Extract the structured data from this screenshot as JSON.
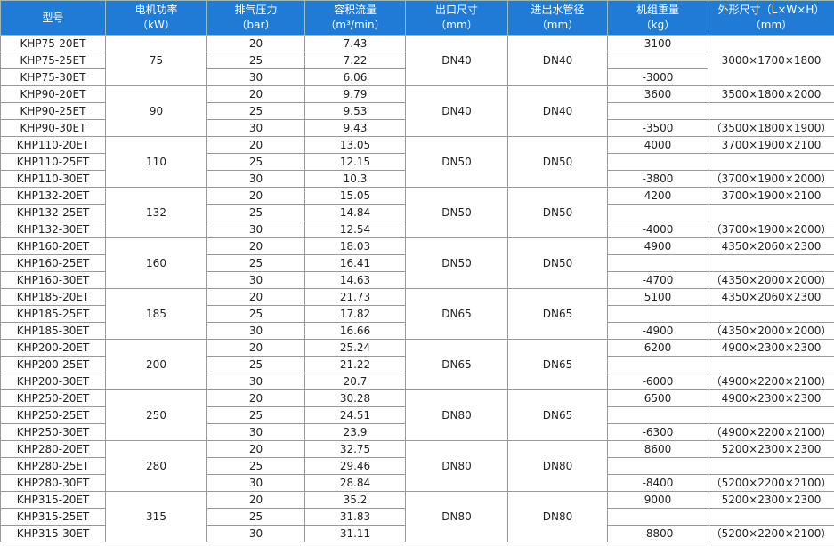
{
  "header": {
    "columns": [
      {
        "title": "型号"
      },
      {
        "title": "电机功率",
        "unit": "（kW）"
      },
      {
        "title": "排气压力",
        "unit": "（bar）"
      },
      {
        "title": "容积流量",
        "unit": "（m³/min）"
      },
      {
        "title": "出口尺寸",
        "unit": "（mm）"
      },
      {
        "title": "进出水管径",
        "unit": "（mm）"
      },
      {
        "title": "机组重量",
        "unit": "（kg）"
      },
      {
        "title": "外形尺寸（L×W×H）",
        "unit": "（mm）"
      }
    ]
  },
  "groups": [
    {
      "models": [
        "KHP75-20ET",
        "KHP75-25ET",
        "KHP75-30ET"
      ],
      "power": "75",
      "pressures": [
        "20",
        "25",
        "30"
      ],
      "flows": [
        "7.43",
        "7.22",
        "6.06"
      ],
      "outlet": "DN40",
      "water": "DN40",
      "weight": [
        "3100",
        "-3000"
      ],
      "dims": [
        "3000×1700×1800"
      ]
    },
    {
      "models": [
        "KHP90-20ET",
        "KHP90-25ET",
        "KHP90-30ET"
      ],
      "power": "90",
      "pressures": [
        "20",
        "25",
        "30"
      ],
      "flows": [
        "9.79",
        "9.53",
        "9.43"
      ],
      "outlet": "DN40",
      "water": "DN40",
      "weight": [
        "3600",
        "-3500"
      ],
      "dims": [
        "3500×1800×2000",
        "（3500×1800×1900）"
      ]
    },
    {
      "models": [
        "KHP110-20ET",
        "KHP110-25ET",
        "KHP110-30ET"
      ],
      "power": "110",
      "pressures": [
        "20",
        "25",
        "30"
      ],
      "flows": [
        "13.05",
        "12.15",
        "10.3"
      ],
      "outlet": "DN50",
      "water": "DN50",
      "weight": [
        "4000",
        "-3800"
      ],
      "dims": [
        "3700×1900×2100",
        "（3700×1900×2000）"
      ]
    },
    {
      "models": [
        "KHP132-20ET",
        "KHP132-25ET",
        "KHP132-30ET"
      ],
      "power": "132",
      "pressures": [
        "20",
        "25",
        "30"
      ],
      "flows": [
        "15.05",
        "14.84",
        "12.54"
      ],
      "outlet": "DN50",
      "water": "DN50",
      "weight": [
        "4200",
        "-4000"
      ],
      "dims": [
        "3700×1900×2100",
        "（3700×1900×2000）"
      ]
    },
    {
      "models": [
        "KHP160-20ET",
        "KHP160-25ET",
        "KHP160-30ET"
      ],
      "power": "160",
      "pressures": [
        "20",
        "25",
        "30"
      ],
      "flows": [
        "18.03",
        "16.41",
        "14.63"
      ],
      "outlet": "DN50",
      "water": "DN50",
      "weight": [
        "4900",
        "-4700"
      ],
      "dims": [
        "4350×2060×2300",
        "（4350×2000×2000）"
      ]
    },
    {
      "models": [
        "KHP185-20ET",
        "KHP185-25ET",
        "KHP185-30ET"
      ],
      "power": "185",
      "pressures": [
        "20",
        "25",
        "30"
      ],
      "flows": [
        "21.73",
        "17.82",
        "16.66"
      ],
      "outlet": "DN65",
      "water": "DN65",
      "weight": [
        "5100",
        "-4900"
      ],
      "dims": [
        "4350×2060×2300",
        "（4350×2000×2000）"
      ]
    },
    {
      "models": [
        "KHP200-20ET",
        "KHP200-25ET",
        "KHP200-30ET"
      ],
      "power": "200",
      "pressures": [
        "20",
        "25",
        "30"
      ],
      "flows": [
        "25.24",
        "21.22",
        "20.7"
      ],
      "outlet": "DN65",
      "water": "DN65",
      "weight": [
        "6200",
        "-6000"
      ],
      "dims": [
        "4900×2300×2300",
        "（4900×2200×2100）"
      ]
    },
    {
      "models": [
        "KHP250-20ET",
        "KHP250-25ET",
        "KHP250-30ET"
      ],
      "power": "250",
      "pressures": [
        "20",
        "25",
        "30"
      ],
      "flows": [
        "30.28",
        "24.51",
        "23.9"
      ],
      "outlet": "DN80",
      "water": "DN65",
      "weight": [
        "6500",
        "-6300"
      ],
      "dims": [
        "4900×2300×2300",
        "（4900×2200×2100）"
      ]
    },
    {
      "models": [
        "KHP280-20ET",
        "KHP280-25ET",
        "KHP280-30ET"
      ],
      "power": "280",
      "pressures": [
        "20",
        "25",
        "30"
      ],
      "flows": [
        "32.75",
        "29.46",
        "28.84"
      ],
      "outlet": "DN80",
      "water": "DN80",
      "weight": [
        "8600",
        "-8400"
      ],
      "dims": [
        "5200×2300×2300",
        "（5200×2200×2100）"
      ]
    },
    {
      "models": [
        "KHP315-20ET",
        "KHP315-25ET",
        "KHP315-30ET"
      ],
      "power": "315",
      "pressures": [
        "20",
        "25",
        "30"
      ],
      "flows": [
        "35.2",
        "31.83",
        "31.11"
      ],
      "outlet": "DN80",
      "water": "DN80",
      "weight": [
        "9000",
        "-8800"
      ],
      "dims": [
        "5200×2300×2300",
        "（5200×2200×2100）"
      ]
    }
  ]
}
